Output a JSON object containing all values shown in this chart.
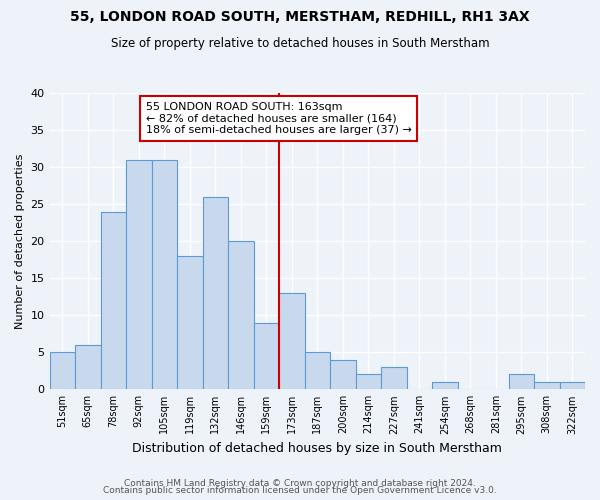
{
  "title": "55, LONDON ROAD SOUTH, MERSTHAM, REDHILL, RH1 3AX",
  "subtitle": "Size of property relative to detached houses in South Merstham",
  "xlabel": "Distribution of detached houses by size in South Merstham",
  "ylabel": "Number of detached properties",
  "bar_labels": [
    "51sqm",
    "65sqm",
    "78sqm",
    "92sqm",
    "105sqm",
    "119sqm",
    "132sqm",
    "146sqm",
    "159sqm",
    "173sqm",
    "187sqm",
    "200sqm",
    "214sqm",
    "227sqm",
    "241sqm",
    "254sqm",
    "268sqm",
    "281sqm",
    "295sqm",
    "308sqm",
    "322sqm"
  ],
  "bar_values": [
    5,
    6,
    24,
    31,
    31,
    18,
    26,
    20,
    9,
    13,
    5,
    4,
    2,
    3,
    0,
    1,
    0,
    0,
    2,
    1,
    1
  ],
  "bar_color": "#c8d9ee",
  "bar_edgecolor": "#5b9bd5",
  "ylim": [
    0,
    40
  ],
  "yticks": [
    0,
    5,
    10,
    15,
    20,
    25,
    30,
    35,
    40
  ],
  "vline_x": 8.5,
  "vline_color": "#cc0000",
  "annotation_title": "55 LONDON ROAD SOUTH: 163sqm",
  "annotation_line1": "← 82% of detached houses are smaller (164)",
  "annotation_line2": "18% of semi-detached houses are larger (37) →",
  "annotation_box_edgecolor": "#cc0000",
  "footer_line1": "Contains HM Land Registry data © Crown copyright and database right 2024.",
  "footer_line2": "Contains public sector information licensed under the Open Government Licence v3.0.",
  "background_color": "#eef2f9",
  "grid_color": "#ffffff"
}
